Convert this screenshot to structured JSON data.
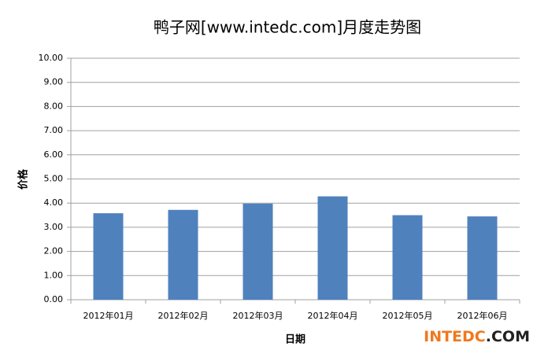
{
  "chart_data": {
    "type": "bar",
    "title": "鸭子网[www.intedc.com]月度走势图",
    "y_label": "价格",
    "x_label": "日期",
    "categories": [
      "2012年01月",
      "2012年02月",
      "2012年03月",
      "2012年04月",
      "2012年05月",
      "2012年06月"
    ],
    "values": [
      3.58,
      3.72,
      3.98,
      4.28,
      3.5,
      3.45
    ],
    "color": "#4f81bd",
    "ylim": [
      0,
      10
    ],
    "yticks": [
      {
        "value": 0,
        "label": "0.00"
      },
      {
        "value": 1,
        "label": "1.00"
      },
      {
        "value": 2,
        "label": "2.00"
      },
      {
        "value": 3,
        "label": "3.00"
      },
      {
        "value": 4,
        "label": "4.00"
      },
      {
        "value": 5,
        "label": "5.00"
      },
      {
        "value": 6,
        "label": "6.00"
      },
      {
        "value": 7,
        "label": "7.00"
      },
      {
        "value": 8,
        "label": "8.00"
      },
      {
        "value": 9,
        "label": "9.00"
      },
      {
        "value": 10,
        "label": "10.00"
      }
    ],
    "grid": true,
    "watermark": {
      "brand": "INTEDC",
      "suffix": ".COM"
    }
  }
}
